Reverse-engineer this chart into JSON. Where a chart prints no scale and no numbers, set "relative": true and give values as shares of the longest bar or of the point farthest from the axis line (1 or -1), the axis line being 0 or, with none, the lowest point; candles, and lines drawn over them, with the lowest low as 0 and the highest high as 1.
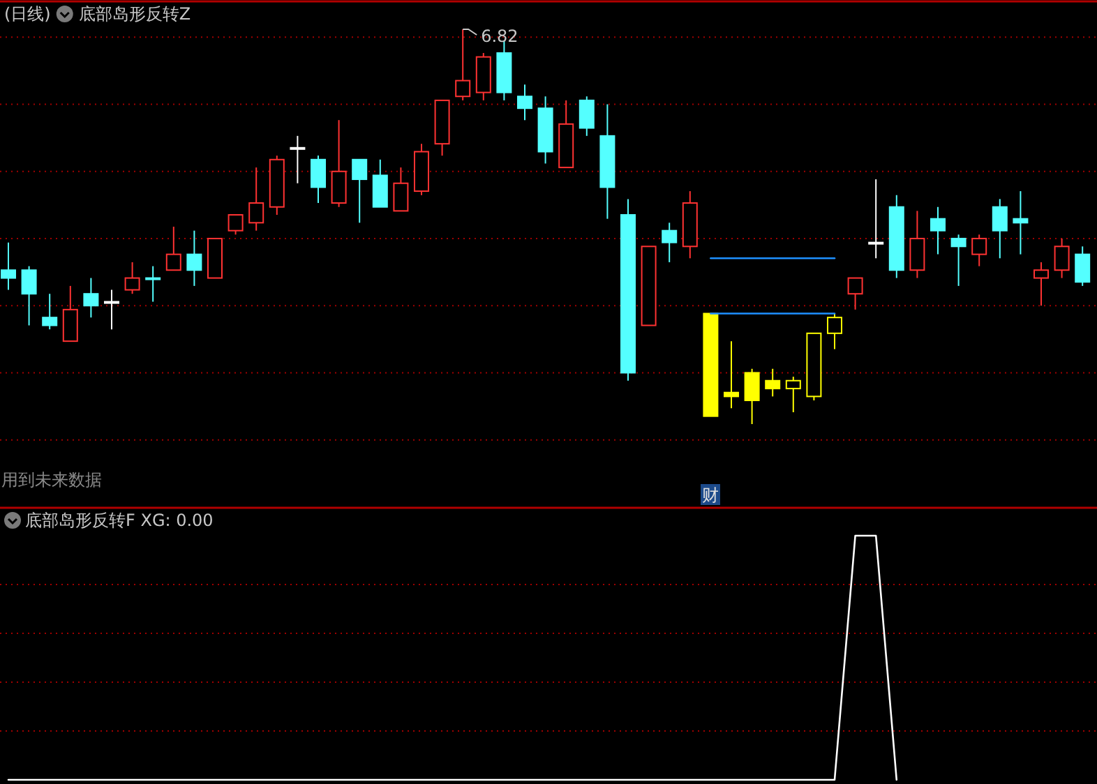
{
  "chart_data": [
    {
      "type": "candlestick",
      "title": "(日线)",
      "subtitle": "底部岛形反转Z",
      "relative": true,
      "ref_lines": [
        {
          "axis": "y",
          "value": 0.98,
          "color": "#a00000",
          "line_style": "dotted"
        },
        {
          "axis": "y",
          "value": 0.81,
          "color": "#a00000",
          "line_style": "dotted"
        },
        {
          "axis": "y",
          "value": 0.64,
          "color": "#a00000",
          "line_style": "dotted"
        },
        {
          "axis": "y",
          "value": 0.47,
          "color": "#a00000",
          "line_style": "dotted"
        },
        {
          "axis": "y",
          "value": 0.3,
          "color": "#a00000",
          "line_style": "dotted"
        },
        {
          "axis": "y",
          "value": 0.13,
          "color": "#a00000",
          "line_style": "dotted"
        },
        {
          "axis": "y",
          "value": -0.04,
          "color": "#a00000",
          "line_style": "dotted"
        }
      ],
      "categories": [
        null,
        null,
        null,
        null,
        null,
        null,
        null,
        null,
        null,
        null,
        null,
        null,
        null,
        null,
        null,
        null,
        null,
        null,
        null,
        null,
        null,
        null,
        null,
        null,
        null,
        null,
        null,
        null,
        null,
        null,
        null,
        null,
        null,
        null,
        null,
        null,
        null,
        null,
        null,
        null,
        null,
        null,
        null,
        null,
        null,
        null,
        null,
        null,
        null,
        null,
        null,
        null,
        null
      ],
      "ohlc": [
        [
          0.39,
          0.46,
          0.34,
          0.37
        ],
        [
          0.39,
          0.4,
          0.25,
          0.33
        ],
        [
          0.27,
          0.33,
          0.24,
          0.25
        ],
        [
          0.21,
          0.35,
          0.21,
          0.29
        ],
        [
          0.33,
          0.37,
          0.27,
          0.3
        ],
        [
          0.31,
          0.34,
          0.24,
          0.31
        ],
        [
          0.34,
          0.41,
          0.33,
          0.37
        ],
        [
          0.37,
          0.4,
          0.31,
          0.37
        ],
        [
          0.39,
          0.5,
          0.39,
          0.43
        ],
        [
          0.43,
          0.49,
          0.35,
          0.39
        ],
        [
          0.37,
          0.47,
          0.37,
          0.47
        ],
        [
          0.49,
          0.53,
          0.48,
          0.53
        ],
        [
          0.51,
          0.65,
          0.49,
          0.56
        ],
        [
          0.55,
          0.68,
          0.53,
          0.67
        ],
        [
          0.7,
          0.73,
          0.61,
          0.7
        ],
        [
          0.67,
          0.68,
          0.56,
          0.6
        ],
        [
          0.56,
          0.77,
          0.55,
          0.64
        ],
        [
          0.67,
          0.67,
          0.51,
          0.62
        ],
        [
          0.63,
          0.67,
          0.55,
          0.55
        ],
        [
          0.54,
          0.65,
          0.54,
          0.61
        ],
        [
          0.59,
          0.71,
          0.58,
          0.69
        ],
        [
          0.71,
          0.82,
          0.68,
          0.82
        ],
        [
          0.83,
          1,
          0.82,
          0.87
        ],
        [
          0.84,
          0.94,
          0.82,
          0.93
        ],
        [
          0.94,
          0.97,
          0.82,
          0.84
        ],
        [
          0.83,
          0.86,
          0.77,
          0.8
        ],
        [
          0.8,
          0.83,
          0.66,
          0.69
        ],
        [
          0.65,
          0.82,
          0.65,
          0.76
        ],
        [
          0.82,
          0.83,
          0.73,
          0.75
        ],
        [
          0.73,
          0.81,
          0.52,
          0.6
        ],
        [
          0.53,
          0.57,
          0.11,
          0.13
        ],
        [
          0.25,
          0.45,
          0.25,
          0.45
        ],
        [
          0.49,
          0.51,
          0.41,
          0.46
        ],
        [
          0.45,
          0.59,
          0.42,
          0.56
        ],
        [
          0.28,
          0.28,
          0.02,
          0.02
        ],
        [
          0.08,
          0.21,
          0.04,
          0.07
        ],
        [
          0.13,
          0.14,
          0,
          0.06
        ],
        [
          0.11,
          0.14,
          0.07,
          0.09
        ],
        [
          0.09,
          0.12,
          0.03,
          0.11
        ],
        [
          0.07,
          0.23,
          0.06,
          0.23
        ],
        [
          0.23,
          0.28,
          0.19,
          0.27
        ],
        [
          0.33,
          0.37,
          0.29,
          0.37
        ],
        [
          0.46,
          0.62,
          0.42,
          0.46
        ],
        [
          0.55,
          0.58,
          0.37,
          0.39
        ],
        [
          0.39,
          0.54,
          0.37,
          0.47
        ],
        [
          0.52,
          0.55,
          0.43,
          0.49
        ],
        [
          0.47,
          0.48,
          0.35,
          0.45
        ],
        [
          0.43,
          0.48,
          0.4,
          0.47
        ],
        [
          0.55,
          0.57,
          0.42,
          0.49
        ],
        [
          0.52,
          0.59,
          0.43,
          0.51
        ],
        [
          0.37,
          0.41,
          0.3,
          0.39
        ],
        [
          0.39,
          0.47,
          0.37,
          0.45
        ],
        [
          0.43,
          0.45,
          0.35,
          0.36
        ]
      ],
      "colors": [
        "#54ffff",
        "#54ffff",
        "#54ffff",
        "#ff3232",
        "#54ffff",
        "#ffffff",
        "#ff3232",
        "#54ffff",
        "#ff3232",
        "#54ffff",
        "#ff3232",
        "#ff3232",
        "#ff3232",
        "#ff3232",
        "#ffffff",
        "#54ffff",
        "#ff3232",
        "#54ffff",
        "#54ffff",
        "#ff3232",
        "#ff3232",
        "#ff3232",
        "#ff3232",
        "#ff3232",
        "#54ffff",
        "#54ffff",
        "#54ffff",
        "#ff3232",
        "#54ffff",
        "#54ffff",
        "#54ffff",
        "#ff3232",
        "#54ffff",
        "#ff3232",
        "#ffff00",
        "#ffff00",
        "#ffff00",
        "#ffff00",
        "#ffff00",
        "#ffff00",
        "#ffff00",
        "#ff3232",
        "#ffffff",
        "#54ffff",
        "#ff3232",
        "#54ffff",
        "#54ffff",
        "#ff3232",
        "#54ffff",
        "#54ffff",
        "#ff3232",
        "#ff3232",
        "#54ffff"
      ],
      "series": [
        {
          "type": "line",
          "color": "#1e90ff",
          "values": [
            null,
            null,
            null,
            null,
            null,
            null,
            null,
            null,
            null,
            null,
            null,
            null,
            null,
            null,
            null,
            null,
            null,
            null,
            null,
            null,
            null,
            null,
            null,
            null,
            null,
            null,
            null,
            null,
            null,
            null,
            null,
            null,
            null,
            null,
            0.42,
            0.42,
            0.42,
            0.42,
            0.42,
            0.42,
            0.42,
            null,
            null,
            null,
            null,
            null,
            null,
            null,
            null,
            null,
            null,
            null,
            null
          ]
        },
        {
          "type": "line",
          "color": "#1e90ff",
          "values": [
            null,
            null,
            null,
            null,
            null,
            null,
            null,
            null,
            null,
            null,
            null,
            null,
            null,
            null,
            null,
            null,
            null,
            null,
            null,
            null,
            null,
            null,
            null,
            null,
            null,
            null,
            null,
            null,
            null,
            null,
            null,
            null,
            null,
            null,
            0.28,
            0.28,
            0.28,
            0.28,
            0.28,
            0.28,
            0.28,
            null,
            null,
            null,
            null,
            null,
            null,
            null,
            null,
            null,
            null,
            null,
            null
          ]
        }
      ],
      "annotations": [
        "用到未来数据",
        "财",
        "6.82"
      ]
    },
    {
      "type": "line",
      "title": "底部岛形反转F XG: 0.00",
      "relative": true,
      "ref_lines": [
        {
          "axis": "y",
          "value": 0.8,
          "color": "#a00000",
          "line_style": "dotted"
        },
        {
          "axis": "y",
          "value": 0.6,
          "color": "#a00000",
          "line_style": "dotted"
        },
        {
          "axis": "y",
          "value": 0.4,
          "color": "#a00000",
          "line_style": "dotted"
        },
        {
          "axis": "y",
          "value": 0.2,
          "color": "#a00000",
          "line_style": "dotted"
        }
      ],
      "categories": [
        null,
        null,
        null,
        null,
        null,
        null,
        null,
        null,
        null,
        null,
        null,
        null,
        null,
        null,
        null,
        null,
        null,
        null,
        null,
        null,
        null,
        null,
        null,
        null,
        null,
        null,
        null,
        null,
        null,
        null,
        null,
        null,
        null,
        null,
        null,
        null,
        null,
        null,
        null,
        null,
        null,
        null,
        null,
        null,
        null,
        null,
        null,
        null,
        null,
        null,
        null,
        null,
        null
      ],
      "series": [
        {
          "color": "#ffffff",
          "values": [
            0,
            0,
            0,
            0,
            0,
            0,
            0,
            0,
            0,
            0,
            0,
            0,
            0,
            0,
            0,
            0,
            0,
            0,
            0,
            0,
            0,
            0,
            0,
            0,
            0,
            0,
            0,
            0,
            0,
            0,
            0,
            0,
            0,
            0,
            0,
            0,
            0,
            0,
            0,
            0,
            0,
            1,
            1,
            0,
            null,
            null,
            null,
            null,
            null,
            null,
            null,
            null,
            null
          ]
        }
      ]
    }
  ]
}
